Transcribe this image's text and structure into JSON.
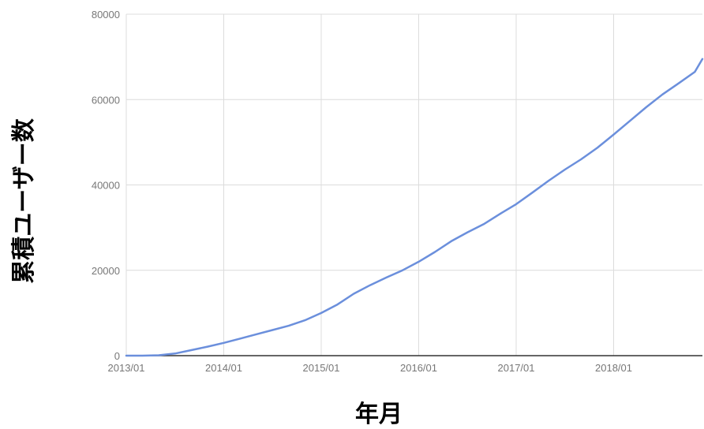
{
  "chart_data": {
    "type": "line",
    "xlabel": "年月",
    "ylabel": "累積ユーザー数",
    "ylim": [
      0,
      80000
    ],
    "y_ticks": [
      0,
      20000,
      40000,
      60000,
      80000
    ],
    "x_ticks": [
      "2013/01",
      "2014/01",
      "2015/01",
      "2016/01",
      "2017/01",
      "2018/01"
    ],
    "grid": true,
    "series": [
      {
        "color": "#6b8fdc",
        "x": [
          "2013/01",
          "2013/03",
          "2013/05",
          "2013/07",
          "2013/09",
          "2013/11",
          "2014/01",
          "2014/03",
          "2014/05",
          "2014/07",
          "2014/09",
          "2014/11",
          "2015/01",
          "2015/03",
          "2015/05",
          "2015/07",
          "2015/09",
          "2015/11",
          "2016/01",
          "2016/03",
          "2016/05",
          "2016/07",
          "2016/09",
          "2016/11",
          "2017/01",
          "2017/03",
          "2017/05",
          "2017/07",
          "2017/09",
          "2017/11",
          "2018/01",
          "2018/03",
          "2018/05",
          "2018/07",
          "2018/09",
          "2018/11",
          "2019/01"
        ],
        "values": [
          0,
          0,
          100,
          500,
          1300,
          2100,
          3000,
          4000,
          5000,
          6000,
          7000,
          8300,
          10000,
          12000,
          14500,
          16500,
          18300,
          20000,
          22000,
          24300,
          26800,
          28900,
          30800,
          33200,
          35500,
          38200,
          41000,
          43600,
          46000,
          48700,
          51800,
          55000,
          58200,
          61200,
          63800,
          66500,
          69500
        ]
      }
    ]
  }
}
